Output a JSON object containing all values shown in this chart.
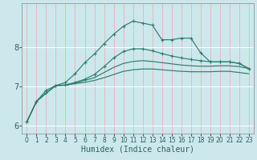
{
  "xlabel": "Humidex (Indice chaleur)",
  "bg_color": "#cce8ec",
  "grid_color": "#ffffff",
  "line_color": "#2e7d6e",
  "xlim": [
    -0.5,
    23.5
  ],
  "ylim": [
    5.8,
    9.1
  ],
  "yticks": [
    6,
    7,
    8
  ],
  "xticks": [
    0,
    1,
    2,
    3,
    4,
    5,
    6,
    7,
    8,
    9,
    10,
    11,
    12,
    13,
    14,
    15,
    16,
    17,
    18,
    19,
    20,
    21,
    22,
    23
  ],
  "line1_x": [
    0,
    1,
    2,
    3,
    4,
    5,
    6,
    7,
    8,
    9,
    10,
    11,
    12,
    13,
    14,
    15,
    16,
    17,
    18,
    19,
    20,
    21,
    22,
    23
  ],
  "line1_y": [
    6.1,
    6.62,
    6.83,
    7.02,
    7.03,
    7.07,
    7.1,
    7.15,
    7.22,
    7.3,
    7.38,
    7.42,
    7.44,
    7.44,
    7.42,
    7.4,
    7.38,
    7.37,
    7.37,
    7.37,
    7.38,
    7.38,
    7.35,
    7.32
  ],
  "line2_x": [
    0,
    1,
    2,
    3,
    4,
    5,
    6,
    7,
    8,
    9,
    10,
    11,
    12,
    13,
    14,
    15,
    16,
    17,
    18,
    19,
    20,
    21,
    22,
    23
  ],
  "line2_y": [
    6.1,
    6.62,
    6.83,
    7.02,
    7.03,
    7.08,
    7.15,
    7.22,
    7.35,
    7.48,
    7.58,
    7.63,
    7.65,
    7.63,
    7.6,
    7.57,
    7.54,
    7.52,
    7.51,
    7.51,
    7.52,
    7.52,
    7.5,
    7.45
  ],
  "line3_x": [
    0,
    1,
    2,
    3,
    4,
    5,
    6,
    7,
    8,
    9,
    10,
    11,
    12,
    13,
    14,
    15,
    16,
    17,
    18,
    19,
    20,
    21,
    22,
    23
  ],
  "line3_y": [
    6.1,
    6.62,
    6.83,
    7.02,
    7.04,
    7.1,
    7.18,
    7.3,
    7.5,
    7.72,
    7.88,
    7.95,
    7.95,
    7.9,
    7.83,
    7.77,
    7.72,
    7.68,
    7.65,
    7.62,
    7.62,
    7.62,
    7.58,
    7.45
  ],
  "line4_x": [
    0,
    1,
    2,
    3,
    4,
    5,
    6,
    7,
    8,
    9,
    10,
    11,
    12,
    13,
    14,
    15,
    16,
    17,
    18,
    19,
    20,
    21,
    22,
    23
  ],
  "line4_y": [
    6.1,
    6.62,
    6.9,
    7.02,
    7.1,
    7.32,
    7.6,
    7.82,
    8.08,
    8.32,
    8.52,
    8.65,
    8.6,
    8.55,
    8.18,
    8.18,
    8.22,
    8.22,
    7.85,
    7.62,
    7.62,
    7.62,
    7.58,
    7.45
  ]
}
